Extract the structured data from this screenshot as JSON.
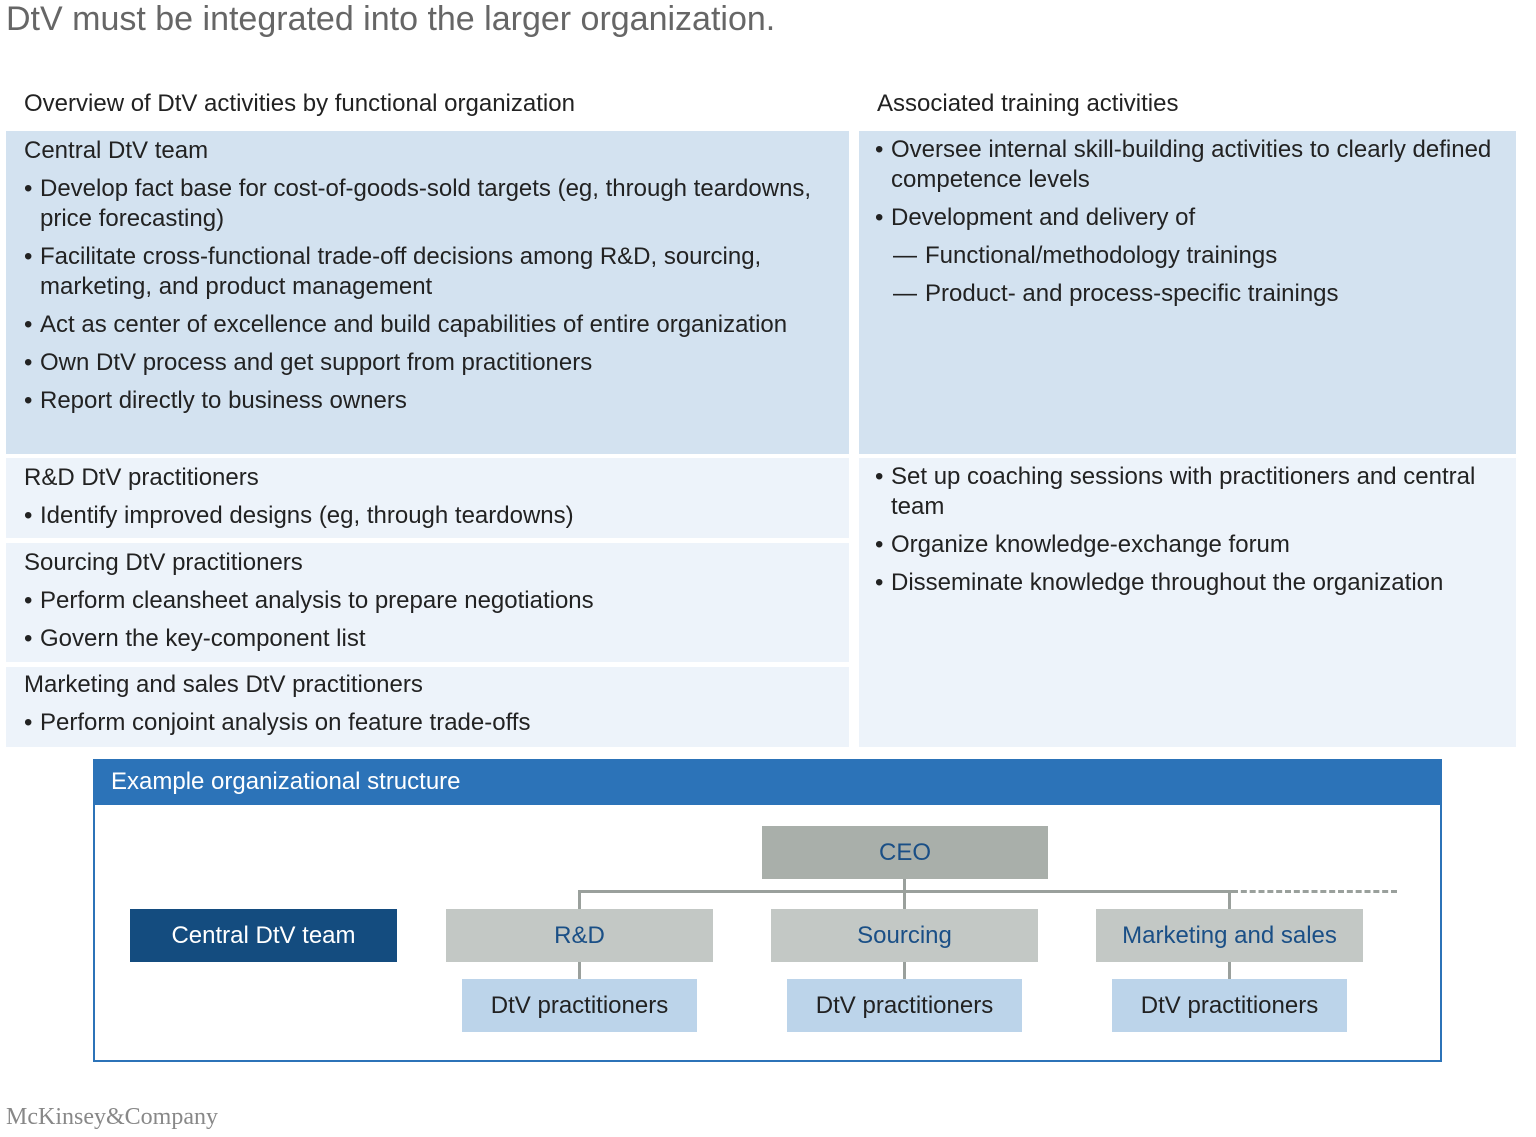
{
  "title": "DtV must be integrated into the larger organization.",
  "left_header": "Overview of DtV activities by functional organization",
  "right_header": "Associated training activities",
  "sections": {
    "central": {
      "heading": "Central DtV team",
      "bullets": [
        "Develop fact base for cost-of-goods-sold targets (eg, through teardowns, price forecasting)",
        "Facilitate cross-functional trade-off decisions among R&D, sourcing, marketing, and product management",
        "Act as center of excellence and build capabilities of entire organization",
        "Own DtV process and get support from practitioners",
        "Report directly to business owners"
      ]
    },
    "rd": {
      "heading": "R&D DtV practitioners",
      "bullets": [
        "Identify improved designs (eg, through teardowns)"
      ]
    },
    "sourcing": {
      "heading": "Sourcing DtV practitioners",
      "bullets": [
        "Perform cleansheet analysis to prepare negotiations",
        "Govern the key-component list"
      ]
    },
    "marketing": {
      "heading": "Marketing and sales DtV practitioners",
      "bullets": [
        "Perform conjoint analysis on feature trade-offs"
      ]
    }
  },
  "training": {
    "central": {
      "bullets": [
        "Oversee internal skill-building activities to clearly defined competence levels",
        "Development and delivery of"
      ],
      "sub": [
        "Functional/methodology trainings",
        "Product- and process-specific trainings"
      ]
    },
    "practitioners": {
      "bullets": [
        "Set up coaching sessions with practitioners and central team",
        "Organize knowledge-exchange forum",
        "Disseminate knowledge throughout the organization"
      ]
    }
  },
  "org": {
    "header": "Example organizational structure",
    "ceo": "CEO",
    "central_team": "Central DtV team",
    "functions": [
      "R&D",
      "Sourcing",
      "Marketing and sales"
    ],
    "practitioners": [
      "DtV practitioners",
      "DtV practitioners",
      "DtV practitioners"
    ]
  },
  "logo": "McKinsey&Company",
  "colors": {
    "accent": "#2c73b8",
    "navy": "#144c7f",
    "panel_dark": "#d3e2f0",
    "panel_light": "#edf3fa"
  }
}
